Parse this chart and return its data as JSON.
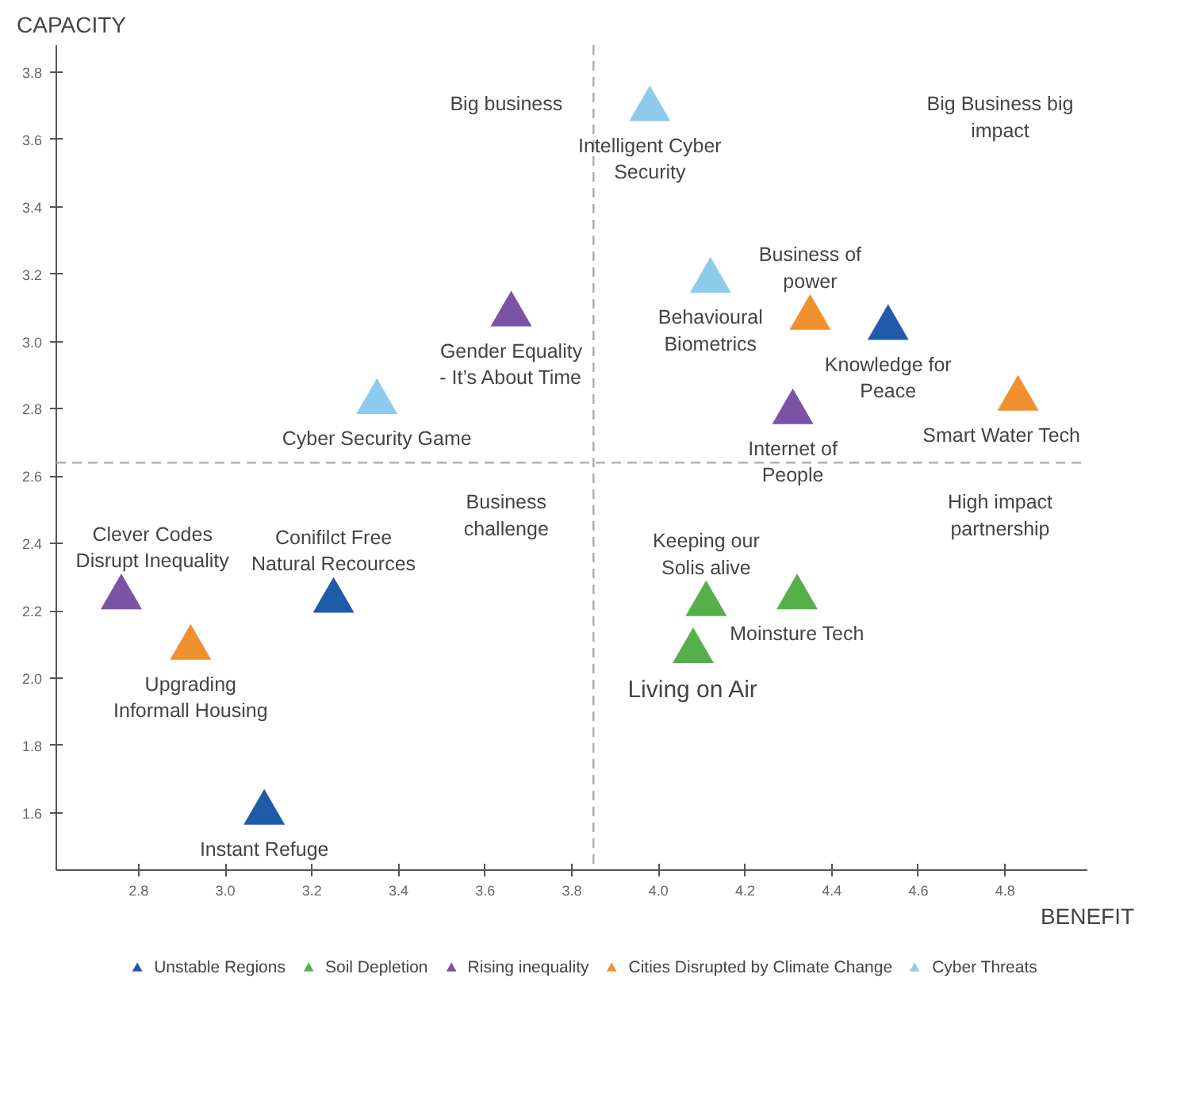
{
  "chart_data": {
    "type": "scatter",
    "xlabel": "BENEFIT",
    "ylabel": "CAPACITY",
    "xlim": [
      2.61,
      4.99
    ],
    "ylim": [
      1.43,
      3.88
    ],
    "xticks": [
      2.8,
      {
        "value": 3.0,
        "label": "3.0"
      },
      3.2,
      3.4,
      3.6,
      3.8,
      {
        "value": 4.0,
        "label": "4.0"
      },
      4.2,
      4.4,
      4.6,
      4.8
    ],
    "yticks": [
      1.6,
      1.8,
      {
        "value": 2.0,
        "label": "2.0"
      },
      2.2,
      2.4,
      2.6,
      2.8,
      {
        "value": 3.0,
        "label": "3.0"
      },
      3.2,
      3.4,
      3.6,
      3.8
    ],
    "grid": false,
    "marker": "triangle",
    "legend": "bottom",
    "series": [
      {
        "name": "Unstable Regions",
        "color": "#1f5ba8",
        "x": [
          3.25,
          3.09,
          4.53
        ],
        "values": [
          2.23,
          1.6,
          3.04
        ]
      },
      {
        "name": "Soil Depletion",
        "color": "#55b04a",
        "x": [
          4.11,
          4.32,
          4.08
        ],
        "values": [
          2.22,
          2.24,
          2.08
        ]
      },
      {
        "name": "Rising inequality",
        "color": "#7a52a6",
        "x": [
          3.66,
          2.76,
          4.31
        ],
        "values": [
          3.08,
          2.24,
          2.79
        ]
      },
      {
        "name": "Cities Disrupted by Climate Change",
        "color": "#f0902f",
        "x": [
          2.92,
          4.35,
          4.83
        ],
        "values": [
          2.09,
          3.07,
          2.83
        ]
      },
      {
        "name": "Cyber Threats",
        "color": "#8ccbec",
        "x": [
          3.35,
          3.98,
          4.12
        ],
        "values": [
          2.82,
          3.69,
          3.18
        ]
      }
    ],
    "ref_lines": [
      {
        "axis": "x",
        "value": 3.85,
        "label": null,
        "color": "#aaaaaa",
        "line_style": "dashed"
      },
      {
        "axis": "y",
        "value": 2.64,
        "label": null,
        "color": "#aaaaaa",
        "line_style": "dashed"
      }
    ],
    "annotations": [
      "Big business",
      "Big Business big\nimpact",
      "Business\nchallenge",
      "High impact\npartnership",
      {
        "text": "Intelligent Cyber\nSecurity",
        "x": 3.98,
        "y": 3.69
      },
      {
        "text": "Behavioural\nBiometrics",
        "x": 4.12,
        "y": 3.18
      },
      {
        "text": "Business of\npower",
        "x": 4.35,
        "y": 3.07
      },
      {
        "text": "Knowledge for\nPeace",
        "x": 4.53,
        "y": 3.04
      },
      {
        "text": "Smart Water Tech",
        "x": 4.83,
        "y": 2.83
      },
      {
        "text": "Internet of\nPeople",
        "x": 4.31,
        "y": 2.79
      },
      {
        "text": "Gender Equality\n- It’s About Time",
        "x": 3.66,
        "y": 3.08
      },
      {
        "text": "Cyber Security Game",
        "x": 3.35,
        "y": 2.82
      },
      {
        "text": "Clever Codes\nDisrupt Inequality",
        "x": 2.76,
        "y": 2.24
      },
      {
        "text": "Conifilct Free\nNatural Recources",
        "x": 3.25,
        "y": 2.23
      },
      {
        "text": "Upgrading\nInformall Housing",
        "x": 2.92,
        "y": 2.09
      },
      {
        "text": "Instant Refuge",
        "x": 3.09,
        "y": 1.6
      },
      {
        "text": "Keeping our\nSolis alive",
        "x": 4.11,
        "y": 2.22
      },
      {
        "text": "Moinsture Tech",
        "x": 4.32,
        "y": 2.24
      },
      {
        "text": "Living on Air",
        "x": 4.08,
        "y": 2.08
      }
    ]
  }
}
